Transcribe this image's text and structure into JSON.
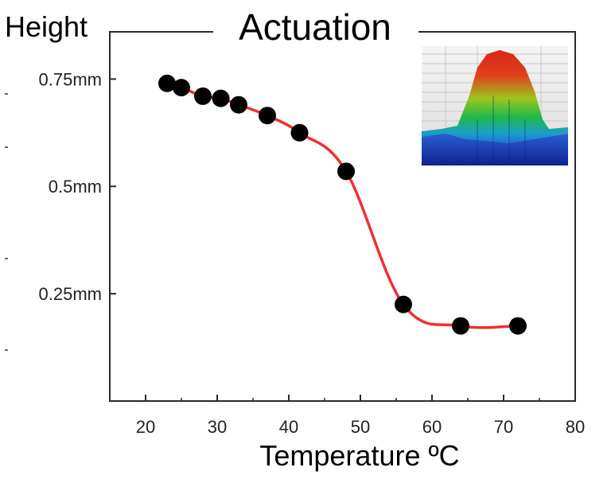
{
  "chart_data": {
    "type": "line",
    "title": "Actuation",
    "xlabel": "Temperature ºC",
    "ylabel": "Height",
    "xlim": [
      15,
      80
    ],
    "ylim": [
      0.0,
      0.86
    ],
    "x_ticks": [
      20,
      30,
      40,
      50,
      60,
      70,
      80
    ],
    "x_tick_labels": [
      "20",
      "30",
      "40",
      "50",
      "60",
      "70",
      "80"
    ],
    "y_ticks": [
      0.25,
      0.5,
      0.75
    ],
    "y_tick_labels": [
      "0.25mm",
      "0.5mm",
      "0.75mm"
    ],
    "grid": false,
    "legend": "none",
    "series": [
      {
        "x": [
          23,
          25,
          28,
          30.5,
          33,
          37,
          41.5,
          48,
          56,
          64,
          72
        ],
        "y": [
          0.74,
          0.73,
          0.71,
          0.705,
          0.69,
          0.665,
          0.625,
          0.535,
          0.225,
          0.175,
          0.175
        ],
        "line_color": "#f03030",
        "marker_color": "#000000"
      }
    ],
    "inset": "3d-height-profile-render"
  }
}
